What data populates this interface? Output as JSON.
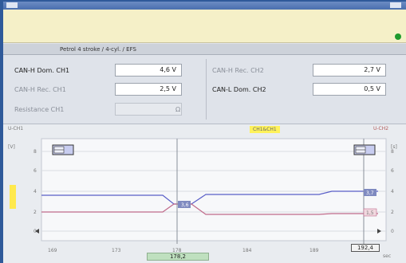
{
  "header": {
    "vehicle": "Petrol 4 stroke / 4-cyl. / EFS"
  },
  "left_fields": [
    {
      "label": "CAN-H Dom. CH1",
      "value": "4,6 V"
    },
    {
      "label": "CAN-H Rec. CH1",
      "value": "2,5 V"
    },
    {
      "label": "Resistance CH1",
      "value": "",
      "unit": "Ω"
    }
  ],
  "right_fields": [
    {
      "label": "CAN-H Rec. CH2",
      "value": "2,7 V"
    },
    {
      "label": "CAN-L Dom. CH2",
      "value": "0,5 V"
    }
  ],
  "scope": {
    "ch_left": "U-CH1",
    "ch_right": "U-CH2",
    "cursor_tag": "CH1&CH1",
    "y_ticks": [
      "8",
      "6",
      "4",
      "2",
      "0"
    ],
    "x_ticks": [
      "169",
      "173",
      "178",
      "184",
      "189"
    ],
    "marker_left": "3,6",
    "marker_right_top": "3,7",
    "marker_right_bottom": "1,5",
    "cursor_value": "178,2",
    "end_value": "192,4",
    "units_right": "[s]",
    "units_left": "[V]",
    "sec_label": "sec"
  }
}
